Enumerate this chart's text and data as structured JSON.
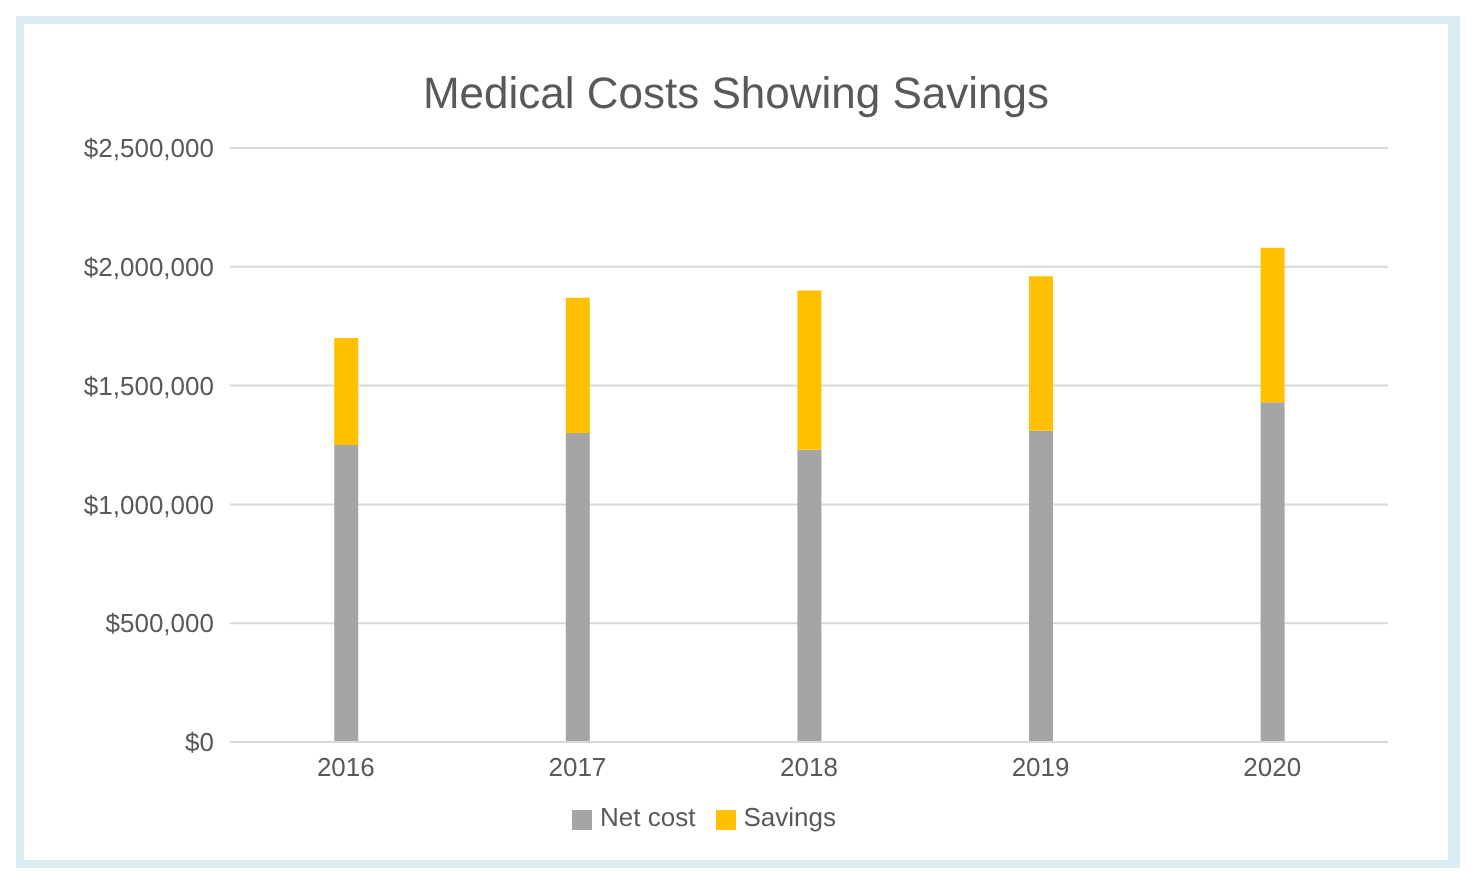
{
  "chart_data": {
    "type": "bar",
    "title": "Medical Costs Showing Savings",
    "categories": [
      "2016",
      "2017",
      "2018",
      "2019",
      "2020"
    ],
    "stacked": true,
    "series": [
      {
        "name": "Net cost",
        "color": "#a5a5a5",
        "values": [
          1250000,
          1300000,
          1230000,
          1310000,
          1430000
        ]
      },
      {
        "name": "Savings",
        "color": "#ffc000",
        "values": [
          450000,
          570000,
          670000,
          650000,
          650000
        ]
      }
    ],
    "ylim": [
      0,
      2500000
    ],
    "yticks": [
      {
        "value": 0,
        "label": "$0"
      },
      {
        "value": 500000,
        "label": "$500,000"
      },
      {
        "value": 1000000,
        "label": "$1,000,000"
      },
      {
        "value": 1500000,
        "label": "$1,500,000"
      },
      {
        "value": 2000000,
        "label": "$2,000,000"
      },
      {
        "value": 2500000,
        "label": "$2,500,000"
      }
    ],
    "grid": "y",
    "legend": "bottom"
  }
}
